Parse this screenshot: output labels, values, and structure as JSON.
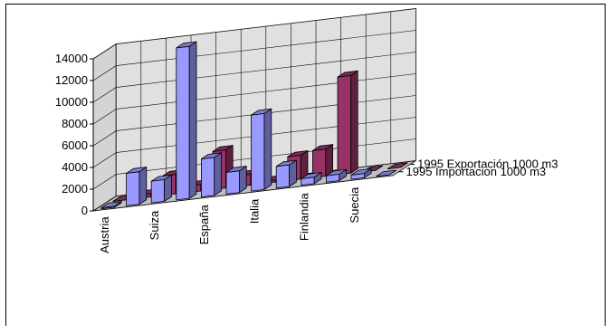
{
  "chart_data": {
    "type": "bar",
    "style": "3d-clustered-depth",
    "categories": [
      "Austria",
      "",
      "Suiza",
      "",
      "España",
      "",
      "Italia",
      "",
      "Finlandia",
      "",
      "Suecia",
      ""
    ],
    "series": [
      {
        "name": "1995 Exportación 1000 m3",
        "color": "#993366",
        "values": [
          0,
          300,
          1800,
          600,
          3500,
          1000,
          200,
          2200,
          2500,
          9000,
          0,
          0
        ]
      },
      {
        "name": "1995 Importacion 1000 m3",
        "color": "#9999FF",
        "values": [
          100,
          3000,
          2000,
          14000,
          3500,
          2000,
          7000,
          2000,
          600,
          600,
          400,
          0
        ]
      }
    ],
    "ylim": [
      0,
      14000
    ],
    "yticks": [
      "0",
      "2000",
      "4000",
      "6000",
      "8000",
      "10000",
      "12000",
      "14000"
    ],
    "grid": true,
    "legend": "right"
  }
}
